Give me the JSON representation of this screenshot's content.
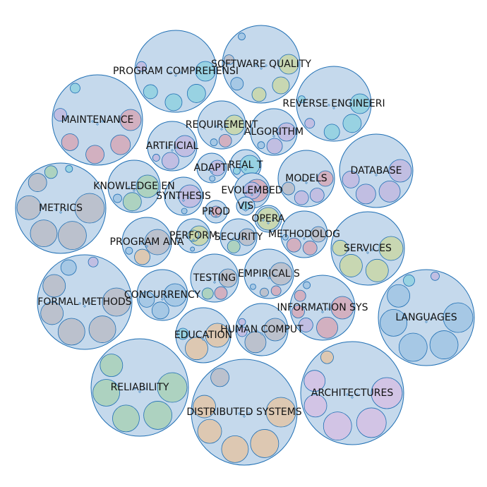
{
  "chart_data": {
    "type": "circle-packing",
    "groups": [
      {
        "label": "SOFTWARE QUALITY",
        "size": 55,
        "children": [
          {
            "size": 14,
            "color": "#c8d6a8"
          },
          {
            "size": 12,
            "color": "#c8d6a8"
          },
          {
            "size": 10,
            "color": "#c8d6a8"
          },
          {
            "size": 9,
            "color": "#a0c4e4"
          },
          {
            "size": 7,
            "color": "#b8bcc8"
          },
          {
            "size": 5,
            "color": "#a0c4e4"
          }
        ]
      },
      {
        "label": "PROGRAM COMPREHENSI",
        "size": 58,
        "children": [
          {
            "size": 14,
            "color": "#8fd0e0"
          },
          {
            "size": 13,
            "color": "#8fd0e0"
          },
          {
            "size": 12,
            "color": "#8fd0e0"
          },
          {
            "size": 10,
            "color": "#8fd0e0"
          },
          {
            "size": 7,
            "color": "#c0b8e0"
          }
        ]
      },
      {
        "label": "REVERSE ENGINEERI",
        "size": 53,
        "children": [
          {
            "size": 14,
            "color": "#8fd0e0"
          },
          {
            "size": 13,
            "color": "#8fd0e0"
          },
          {
            "size": 11,
            "color": "#8fd0e0"
          },
          {
            "size": 7,
            "color": "#c0b8e0"
          },
          {
            "size": 5,
            "color": "#8fd0e0"
          }
        ]
      },
      {
        "label": "MAINTENANCE",
        "size": 64,
        "children": [
          {
            "size": 15,
            "color": "#d4a8b8"
          },
          {
            "size": 14,
            "color": "#d4a8b8"
          },
          {
            "size": 13,
            "color": "#d4a8b8"
          },
          {
            "size": 12,
            "color": "#d4a8b8"
          },
          {
            "size": 9,
            "color": "#c0b8e0"
          },
          {
            "size": 7,
            "color": "#8fd0e0"
          }
        ]
      },
      {
        "label": "REQUIREMENT",
        "size": 34,
        "children": [
          {
            "size": 14,
            "color": "#c8d6a8"
          },
          {
            "size": 9,
            "color": "#d4a8b8"
          },
          {
            "size": 5,
            "color": "#a0c4e4"
          }
        ]
      },
      {
        "label": "ALGORITHM",
        "size": 33,
        "children": [
          {
            "size": 13,
            "color": "#c0b8e0"
          },
          {
            "size": 11,
            "color": "#c0b8e0"
          },
          {
            "size": 5,
            "color": "#a0c4e4"
          }
        ]
      },
      {
        "label": "ARTIFICIAL",
        "size": 35,
        "children": [
          {
            "size": 15,
            "color": "#c0b8e0"
          },
          {
            "size": 12,
            "color": "#c0b8e0"
          },
          {
            "size": 5,
            "color": "#c0b8e0"
          }
        ]
      },
      {
        "label": "DATABASE",
        "size": 52,
        "children": [
          {
            "size": 16,
            "color": "#c0b8e0"
          },
          {
            "size": 15,
            "color": "#c0b8e0"
          },
          {
            "size": 14,
            "color": "#c0b8e0"
          },
          {
            "size": 12,
            "color": "#c0b8e0"
          }
        ]
      },
      {
        "label": "ADAPTI",
        "size": 21,
        "children": [
          {
            "size": 11,
            "color": "#c0b8e0"
          },
          {
            "size": 4,
            "color": "#a0c4e4"
          }
        ]
      },
      {
        "label": "REAL T",
        "size": 22,
        "children": [
          {
            "size": 14,
            "color": "#8fd0e0"
          },
          {
            "size": 5,
            "color": "#8fd0e0"
          }
        ]
      },
      {
        "label": "MODELS",
        "size": 40,
        "children": [
          {
            "size": 11,
            "color": "#d4a8b8"
          },
          {
            "size": 10,
            "color": "#c0b8e0"
          },
          {
            "size": 10,
            "color": "#c0b8e0"
          },
          {
            "size": 9,
            "color": "#b8bcc8"
          }
        ]
      },
      {
        "label": "KNOWLEDGE EN",
        "size": 37,
        "children": [
          {
            "size": 16,
            "color": "#a8d0b8"
          },
          {
            "size": 13,
            "color": "#a8d0b8"
          },
          {
            "size": 6,
            "color": "#a0c4e4"
          }
        ]
      },
      {
        "label": "METRICS",
        "size": 64,
        "children": [
          {
            "size": 21,
            "color": "#b8bcc8"
          },
          {
            "size": 20,
            "color": "#b8bcc8"
          },
          {
            "size": 19,
            "color": "#b8bcc8"
          },
          {
            "size": 17,
            "color": "#b8bcc8"
          },
          {
            "size": 13,
            "color": "#b8bcc8"
          },
          {
            "size": 9,
            "color": "#a8d0b8"
          },
          {
            "size": 5,
            "color": "#8fd0e0"
          }
        ]
      },
      {
        "label": "SYNTHESIS",
        "size": 27,
        "children": [
          {
            "size": 16,
            "color": "#c0b8e0"
          },
          {
            "size": 4,
            "color": "#a0c4e4"
          }
        ]
      },
      {
        "label": "EVOLEMBED",
        "size": 25,
        "children": [
          {
            "size": 16,
            "color": "#d4a8b8"
          },
          {
            "size": 12,
            "color": "#c0b8e0"
          }
        ]
      },
      {
        "label": "PROD",
        "size": 16,
        "children": [
          {
            "size": 8,
            "color": "#d4a8b8"
          }
        ]
      },
      {
        "label": "VIS",
        "size": 13,
        "children": [
          {
            "size": 6,
            "color": "#8fd0e0"
          }
        ]
      },
      {
        "label": "OPERA",
        "size": 19,
        "children": [
          {
            "size": 16,
            "color": "#c8d6a8"
          }
        ]
      },
      {
        "label": "PROGRAM ANA",
        "size": 35,
        "children": [
          {
            "size": 18,
            "color": "#b8bcc8"
          },
          {
            "size": 11,
            "color": "#e0c4a8"
          },
          {
            "size": 5,
            "color": "#a0c4e4"
          }
        ]
      },
      {
        "label": "PERFORM",
        "size": 24,
        "children": [
          {
            "size": 14,
            "color": "#c8d6a8"
          },
          {
            "size": 8,
            "color": "#c8d6a8"
          },
          {
            "size": 3,
            "color": "#a0c4e4"
          }
        ]
      },
      {
        "label": "SECURITY",
        "size": 26,
        "children": [
          {
            "size": 12,
            "color": "#b8bcc8"
          },
          {
            "size": 9,
            "color": "#a8d0b8"
          }
        ]
      },
      {
        "label": "METHODOLOG",
        "size": 33,
        "children": [
          {
            "size": 10,
            "color": "#d4a8b8"
          },
          {
            "size": 10,
            "color": "#d4a8b8"
          },
          {
            "size": 11,
            "color": "#b8bcc8"
          },
          {
            "size": 4,
            "color": "#a0c4e4"
          }
        ]
      },
      {
        "label": "SERVICES",
        "size": 52,
        "children": [
          {
            "size": 17,
            "color": "#c8d6a8"
          },
          {
            "size": 16,
            "color": "#c8d6a8"
          },
          {
            "size": 16,
            "color": "#c8d6a8"
          },
          {
            "size": 11,
            "color": "#c8d6a8"
          }
        ]
      },
      {
        "label": "CONCURRENCY",
        "size": 36,
        "children": [
          {
            "size": 16,
            "color": "#a0c4e4"
          },
          {
            "size": 12,
            "color": "#a0c4e4"
          },
          {
            "size": 11,
            "color": "#a0c4e4"
          }
        ]
      },
      {
        "label": "TESTING",
        "size": 34,
        "children": [
          {
            "size": 13,
            "color": "#b8bcc8"
          },
          {
            "size": 9,
            "color": "#d4a8b8"
          },
          {
            "size": 8,
            "color": "#a8d0b8"
          }
        ]
      },
      {
        "label": "EMPIRICAL S",
        "size": 35,
        "children": [
          {
            "size": 16,
            "color": "#b8bcc8"
          },
          {
            "size": 7,
            "color": "#d4a8b8"
          },
          {
            "size": 6,
            "color": "#b8bcc8"
          },
          {
            "size": 4,
            "color": "#a0c4e4"
          }
        ]
      },
      {
        "label": "FORMAL METHODS",
        "size": 67,
        "children": [
          {
            "size": 20,
            "color": "#b8bcc8"
          },
          {
            "size": 19,
            "color": "#b8bcc8"
          },
          {
            "size": 19,
            "color": "#b8bcc8"
          },
          {
            "size": 16,
            "color": "#b8bcc8"
          },
          {
            "size": 16,
            "color": "#b8bcc8"
          },
          {
            "size": 11,
            "color": "#a0c4e4"
          },
          {
            "size": 7,
            "color": "#c0b8e0"
          }
        ]
      },
      {
        "label": "INFORMATION SYS",
        "size": 46,
        "children": [
          {
            "size": 16,
            "color": "#d4a8b8"
          },
          {
            "size": 15,
            "color": "#d4a8b8"
          },
          {
            "size": 10,
            "color": "#c0b8e0"
          },
          {
            "size": 9,
            "color": "#d4a8b8"
          },
          {
            "size": 8,
            "color": "#d4a8b8"
          },
          {
            "size": 5,
            "color": "#a0c4e4"
          }
        ]
      },
      {
        "label": "LANGUAGES",
        "size": 68,
        "children": [
          {
            "size": 21,
            "color": "#a0c4e4"
          },
          {
            "size": 20,
            "color": "#a0c4e4"
          },
          {
            "size": 20,
            "color": "#a0c4e4"
          },
          {
            "size": 19,
            "color": "#a0c4e4"
          },
          {
            "size": 16,
            "color": "#a0c4e4"
          },
          {
            "size": 8,
            "color": "#8fd0e0"
          },
          {
            "size": 6,
            "color": "#c0b8e0"
          }
        ]
      },
      {
        "label": "EDUCATION",
        "size": 39,
        "children": [
          {
            "size": 17,
            "color": "#e0c4a8"
          },
          {
            "size": 16,
            "color": "#e0c4a8"
          },
          {
            "size": 8,
            "color": "#8fd0e0"
          }
        ]
      },
      {
        "label": "HUMAN COMPUT",
        "size": 37,
        "children": [
          {
            "size": 16,
            "color": "#b8bcc8"
          },
          {
            "size": 15,
            "color": "#b8bcc8"
          },
          {
            "size": 7,
            "color": "#c0b8e0"
          },
          {
            "size": 5,
            "color": "#c0b8e0"
          }
        ]
      },
      {
        "label": "RELIABILITY",
        "size": 69,
        "children": [
          {
            "size": 21,
            "color": "#a8d0b8"
          },
          {
            "size": 20,
            "color": "#a8d0b8"
          },
          {
            "size": 19,
            "color": "#a8d0b8"
          },
          {
            "size": 19,
            "color": "#a8d0b8"
          },
          {
            "size": 16,
            "color": "#a8d0b8"
          }
        ]
      },
      {
        "label": "DISTRIBUTED SYSTEMS",
        "size": 75,
        "children": [
          {
            "size": 21,
            "color": "#e0c4a8"
          },
          {
            "size": 20,
            "color": "#e0c4a8"
          },
          {
            "size": 19,
            "color": "#e0c4a8"
          },
          {
            "size": 17,
            "color": "#e0c4a8"
          },
          {
            "size": 16,
            "color": "#e0c4a8"
          },
          {
            "size": 13,
            "color": "#b8bcc8"
          }
        ]
      },
      {
        "label": "ARCHITECTURES",
        "size": 73,
        "children": [
          {
            "size": 22,
            "color": "#d4c0e4"
          },
          {
            "size": 21,
            "color": "#d4c0e4"
          },
          {
            "size": 20,
            "color": "#d4c0e4"
          },
          {
            "size": 16,
            "color": "#d4c0e4"
          },
          {
            "size": 15,
            "color": "#d4c0e4"
          },
          {
            "size": 9,
            "color": "#e0c4a8"
          }
        ]
      }
    ]
  }
}
